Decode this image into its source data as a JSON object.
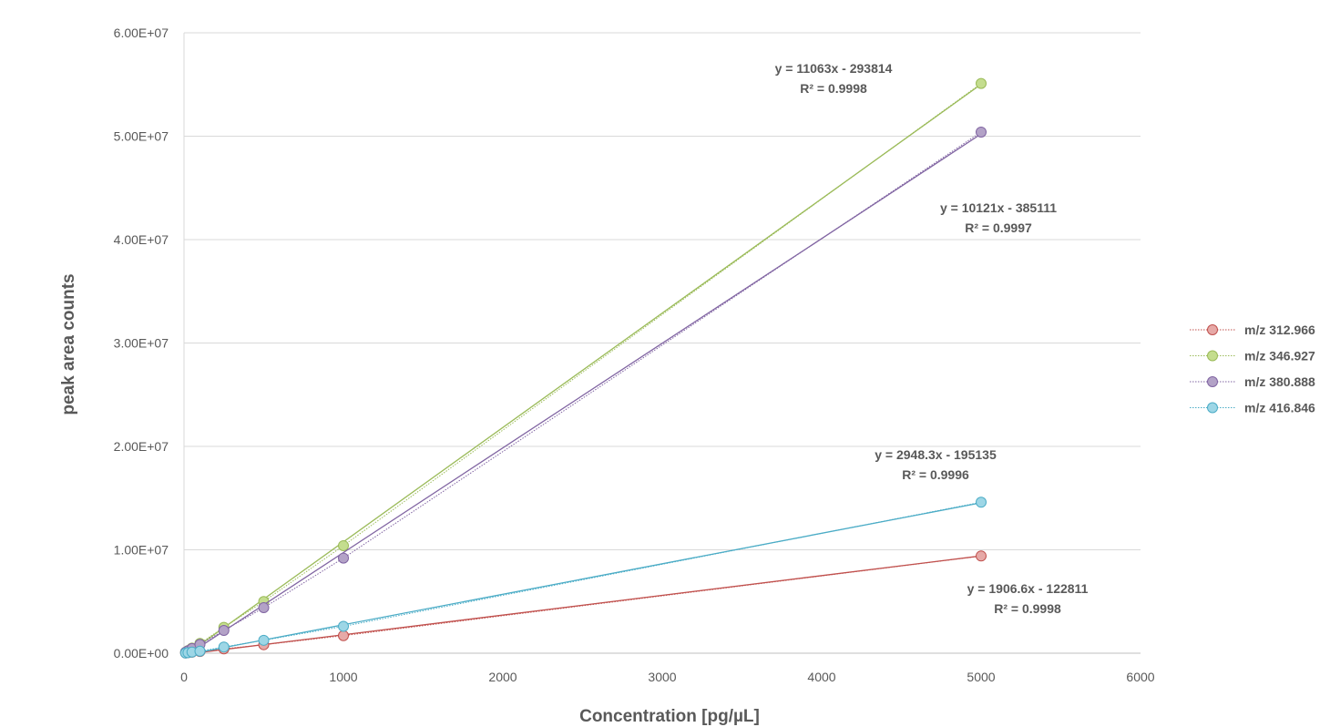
{
  "chart_data": {
    "type": "scatter",
    "xlabel": "Concentration [pg/µL]",
    "ylabel": "peak area counts",
    "xlim": [
      0,
      6000
    ],
    "ylim": [
      0,
      60000000
    ],
    "x_ticks": [
      "0",
      "1000",
      "2000",
      "3000",
      "4000",
      "5000",
      "6000"
    ],
    "y_ticks": [
      "0.00E+00",
      "1.00E+07",
      "2.00E+07",
      "3.00E+07",
      "4.00E+07",
      "5.00E+07",
      "6.00E+07"
    ],
    "grid": "horizontal",
    "legend_position": "right",
    "series": [
      {
        "name": "m/z 312.966",
        "color": "#c0504d",
        "fill": "#e6a9a7",
        "x": [
          10,
          25,
          50,
          100,
          250,
          500,
          1000,
          5000
        ],
        "y": [
          20000,
          50000,
          100000,
          170000,
          420000,
          820000,
          1700000,
          9400000
        ],
        "trendline": {
          "slope": 1906.6,
          "intercept": -122811
        },
        "equation": "y = 1906.6x - 122811",
        "r2": "R² = 0.9998"
      },
      {
        "name": "m/z 346.927",
        "color": "#9bbb59",
        "fill": "#c4dd8e",
        "x": [
          10,
          25,
          50,
          100,
          250,
          500,
          1000,
          5000
        ],
        "y": [
          100000,
          250000,
          500000,
          950000,
          2500000,
          5000000,
          10400000,
          55100000
        ],
        "trendline": {
          "slope": 11063,
          "intercept": -293814
        },
        "equation": "y = 11063x - 293814",
        "r2": "R² = 0.9998"
      },
      {
        "name": "m/z 380.888",
        "color": "#8064a2",
        "fill": "#b3a2c7",
        "x": [
          10,
          25,
          50,
          100,
          250,
          500,
          1000,
          5000
        ],
        "y": [
          100000,
          230000,
          450000,
          850000,
          2200000,
          4400000,
          9200000,
          50400000
        ],
        "trendline": {
          "slope": 10121,
          "intercept": -385111
        },
        "equation": "y = 10121x - 385111",
        "r2": "R² = 0.9997"
      },
      {
        "name": "m/z 416.846",
        "color": "#4bacc6",
        "fill": "#9dd6e6",
        "x": [
          10,
          25,
          50,
          100,
          250,
          500,
          1000,
          5000
        ],
        "y": [
          20000,
          50000,
          110000,
          200000,
          600000,
          1250000,
          2600000,
          14600000
        ],
        "trendline": {
          "slope": 2948.3,
          "intercept": -195135
        },
        "equation": "y = 2948.3x - 195135",
        "r2": "R² = 0.9996"
      }
    ]
  }
}
